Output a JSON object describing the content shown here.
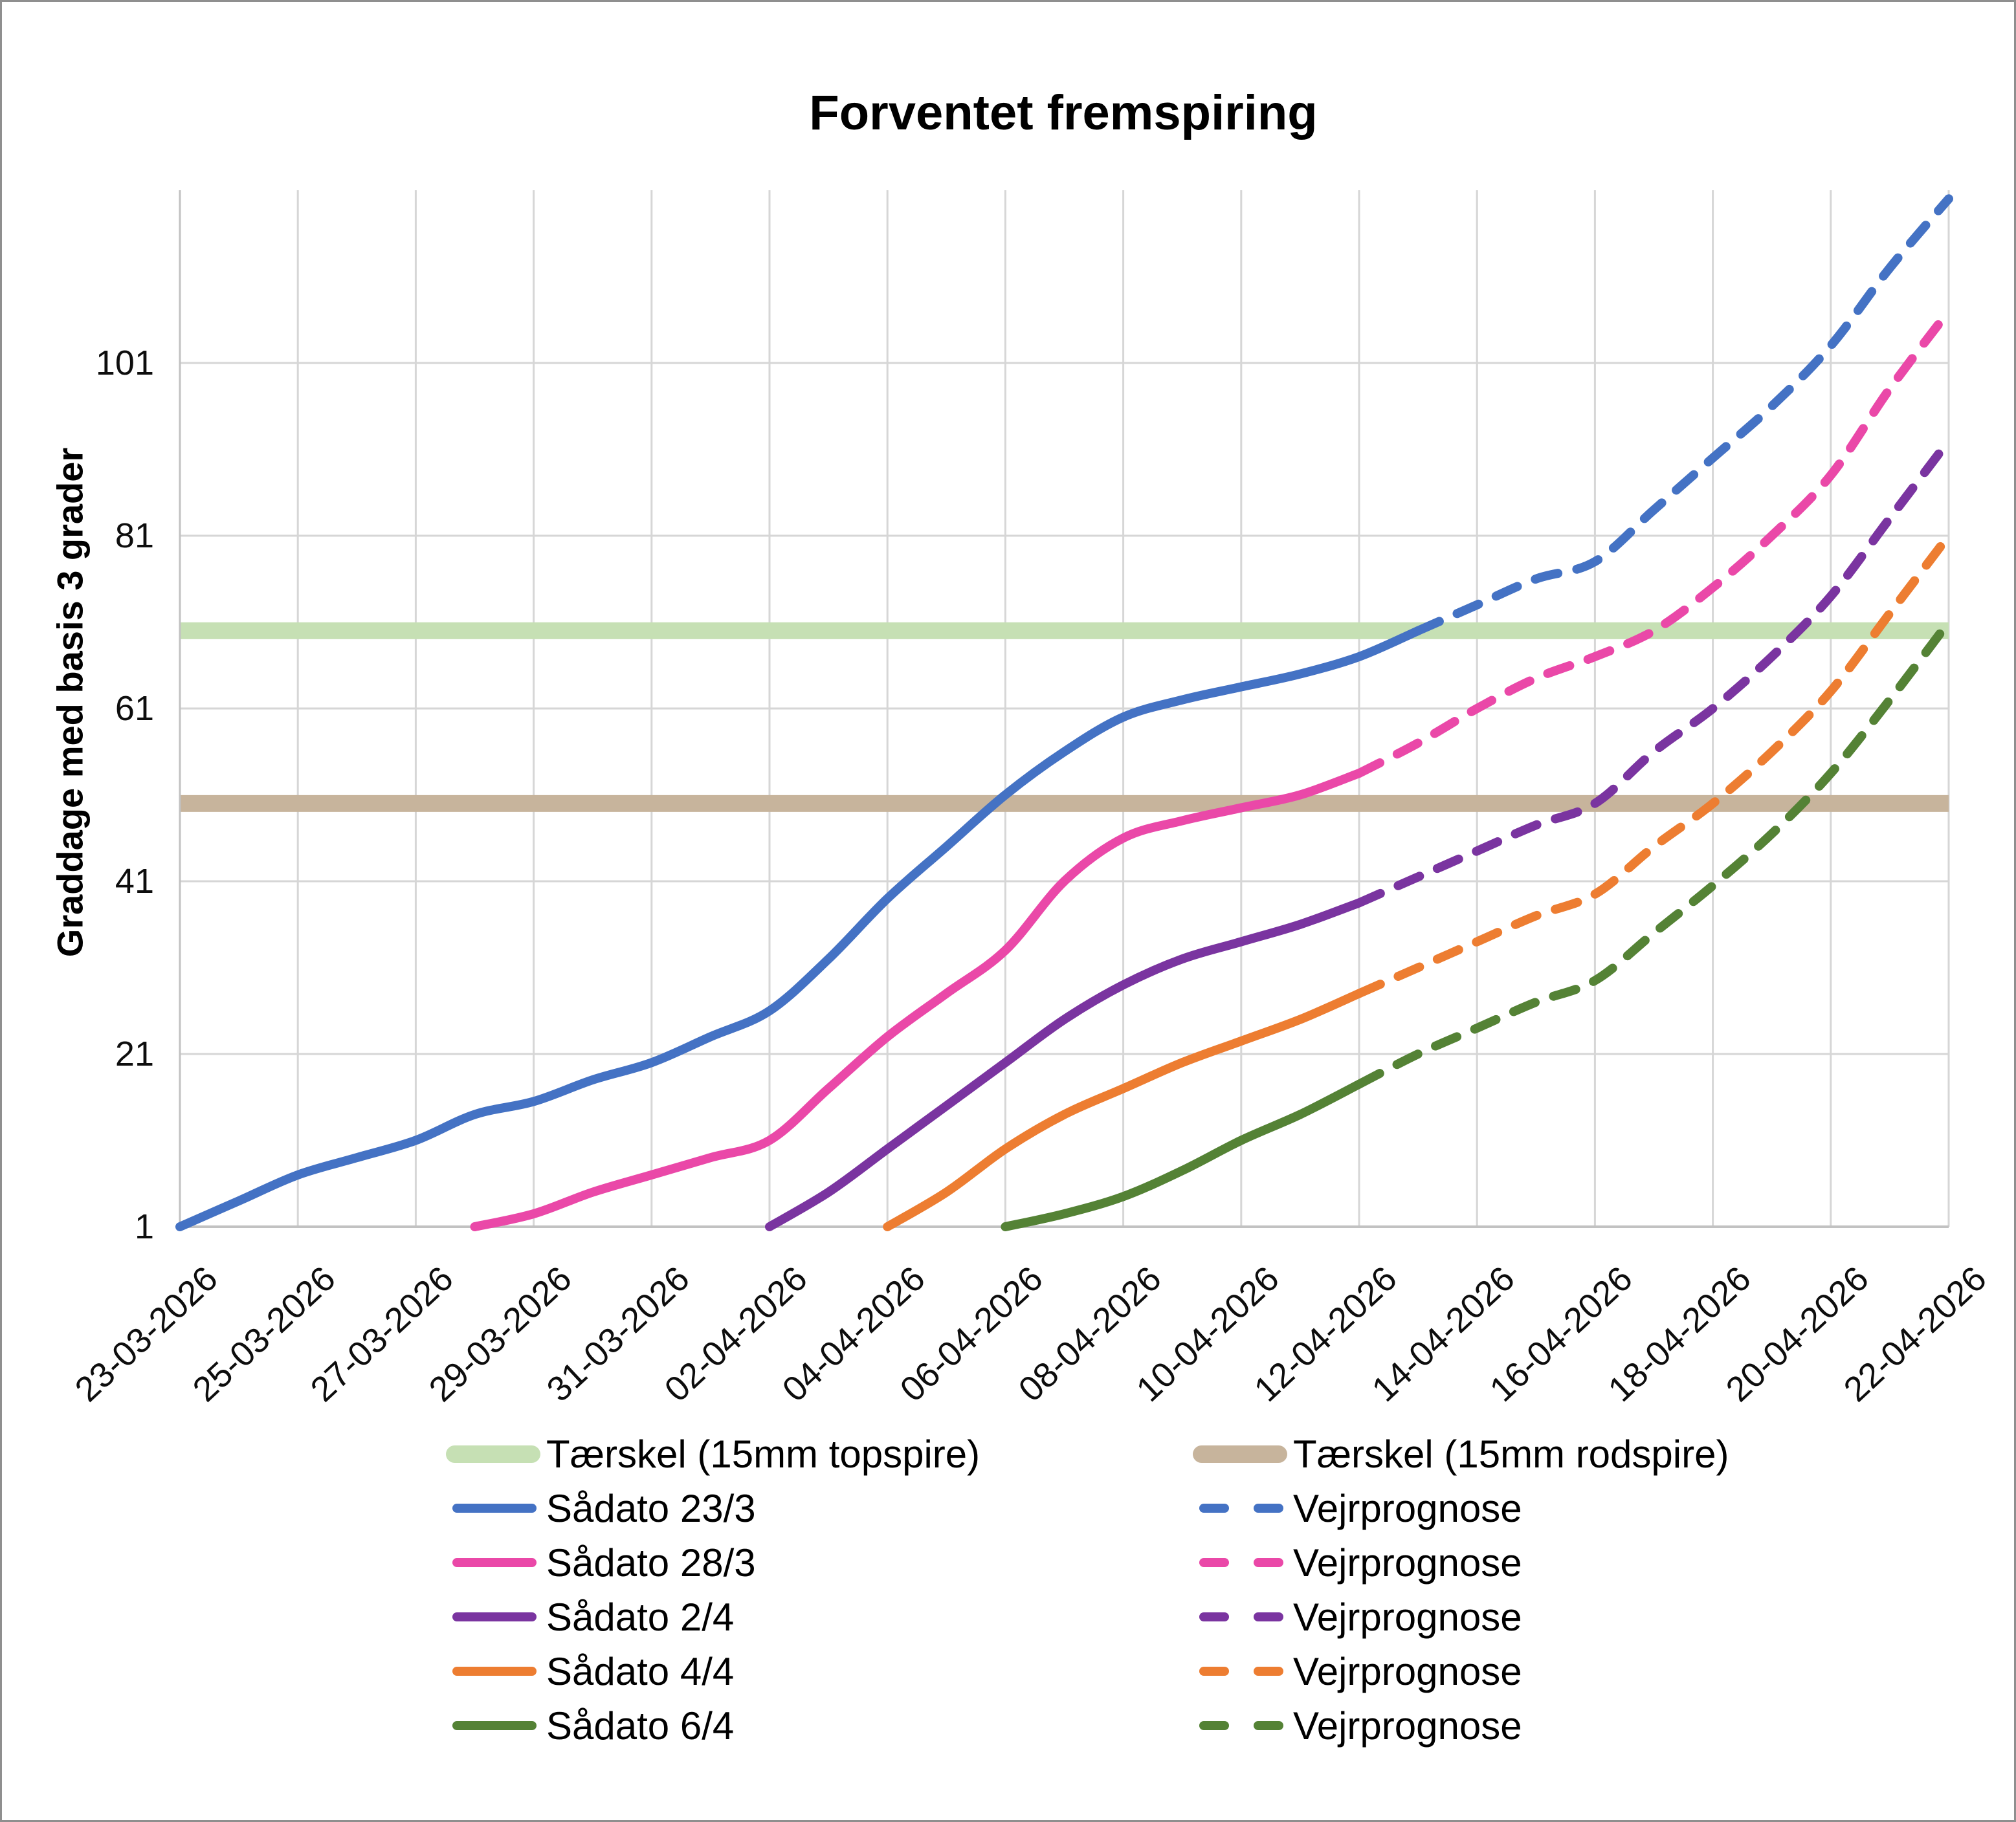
{
  "chart_data": {
    "type": "line",
    "title": "Forventet fremspiring",
    "ylabel": "Graddage med basis 3 grader",
    "xlabel": "",
    "dates": [
      "23-03-2026",
      "24-03-2026",
      "25-03-2026",
      "26-03-2026",
      "27-03-2026",
      "28-03-2026",
      "29-03-2026",
      "30-03-2026",
      "31-03-2026",
      "01-04-2026",
      "02-04-2026",
      "03-04-2026",
      "04-04-2026",
      "05-04-2026",
      "06-04-2026",
      "07-04-2026",
      "08-04-2026",
      "09-04-2026",
      "10-04-2026",
      "11-04-2026",
      "12-04-2026",
      "13-04-2026",
      "14-04-2026",
      "15-04-2026",
      "16-04-2026",
      "17-04-2026",
      "18-04-2026",
      "19-04-2026",
      "20-04-2026",
      "21-04-2026",
      "22-04-2026"
    ],
    "x_tick_labels": [
      "23-03-2026",
      "25-03-2026",
      "27-03-2026",
      "29-03-2026",
      "31-03-2026",
      "02-04-2026",
      "04-04-2026",
      "06-04-2026",
      "08-04-2026",
      "10-04-2026",
      "12-04-2026",
      "14-04-2026",
      "16-04-2026",
      "18-04-2026",
      "20-04-2026",
      "22-04-2026"
    ],
    "yticks": [
      1,
      21,
      41,
      61,
      81,
      101
    ],
    "ylim": [
      1,
      121
    ],
    "grid": true,
    "grid_color": "#D6D6D6",
    "axis_color": "#C2C2C2",
    "legend_position": "bottom",
    "thresholds": [
      {
        "label": "Tærskel (15mm topspire)",
        "value": 70,
        "color": "#C6E0B4"
      },
      {
        "label": "Tærskel (15mm rodspire)",
        "value": 50,
        "color": "#C7B49C"
      }
    ],
    "series": [
      {
        "label": "Sådato 23/3",
        "forecast_label": "Vejrprognose",
        "color": "#4472C4",
        "start_date": "23-03-2026",
        "solid_through": "13-04-2026",
        "values": [
          1,
          4,
          7,
          9,
          11,
          14,
          15.5,
          18,
          20,
          23,
          26,
          32,
          39,
          45,
          51,
          56,
          60,
          62,
          63.5,
          65,
          67,
          70,
          73,
          76,
          78,
          84,
          90,
          96,
          103,
          112,
          120
        ]
      },
      {
        "label": "Sådato 28/3",
        "forecast_label": "Vejrprognose",
        "color": "#EA48A8",
        "start_date": "28-03-2026",
        "solid_through": "12-04-2026",
        "values": [
          1,
          2.5,
          5,
          7,
          9,
          11,
          17,
          23,
          28,
          33,
          41,
          46,
          48,
          49.5,
          51,
          53.5,
          57,
          61,
          64.5,
          67,
          70,
          75,
          81,
          88,
          98,
          107
        ]
      },
      {
        "label": "Sådato 2/4",
        "forecast_label": "Vejrprognose",
        "color": "#7A34A0",
        "start_date": "02-04-2026",
        "solid_through": "12-04-2026",
        "values": [
          1,
          5,
          10,
          15,
          20,
          25,
          29,
          32,
          34,
          36,
          38.5,
          41.5,
          44.5,
          47.5,
          50,
          56,
          61,
          67,
          74,
          83,
          92
        ]
      },
      {
        "label": "Sådato 4/4",
        "forecast_label": "Vejrprognose",
        "color": "#ED7D31",
        "start_date": "04-04-2026",
        "solid_through": "12-04-2026",
        "values": [
          1,
          5,
          10,
          14,
          17,
          20,
          22.5,
          25,
          28,
          31,
          34,
          37,
          39.5,
          45,
          50,
          56,
          63,
          72,
          81
        ]
      },
      {
        "label": "Sådato 6/4",
        "forecast_label": "Vejrprognose",
        "color": "#548235",
        "start_date": "06-04-2026",
        "solid_through": "12-04-2026",
        "values": [
          1,
          2.5,
          4.5,
          7.5,
          11,
          14,
          17.5,
          21,
          24,
          27,
          29.5,
          35,
          40.5,
          46.5,
          53.5,
          62,
          71
        ]
      }
    ]
  },
  "legend": {
    "left": [
      {
        "type": "band",
        "color": "#C6E0B4",
        "label": "Tærskel (15mm topspire)"
      },
      {
        "type": "solid",
        "color": "#4472C4",
        "label": "Sådato 23/3"
      },
      {
        "type": "solid",
        "color": "#EA48A8",
        "label": "Sådato 28/3"
      },
      {
        "type": "solid",
        "color": "#7A34A0",
        "label": "Sådato 2/4"
      },
      {
        "type": "solid",
        "color": "#ED7D31",
        "label": "Sådato 4/4"
      },
      {
        "type": "solid",
        "color": "#548235",
        "label": "Sådato 6/4"
      }
    ],
    "right": [
      {
        "type": "band",
        "color": "#C7B49C",
        "label": "Tærskel (15mm rodspire)"
      },
      {
        "type": "dashed",
        "color": "#4472C4",
        "label": "Vejrprognose"
      },
      {
        "type": "dashed",
        "color": "#EA48A8",
        "label": "Vejrprognose"
      },
      {
        "type": "dashed",
        "color": "#7A34A0",
        "label": "Vejrprognose"
      },
      {
        "type": "dashed",
        "color": "#ED7D31",
        "label": "Vejrprognose"
      },
      {
        "type": "dashed",
        "color": "#548235",
        "label": "Vejrprognose"
      }
    ]
  }
}
